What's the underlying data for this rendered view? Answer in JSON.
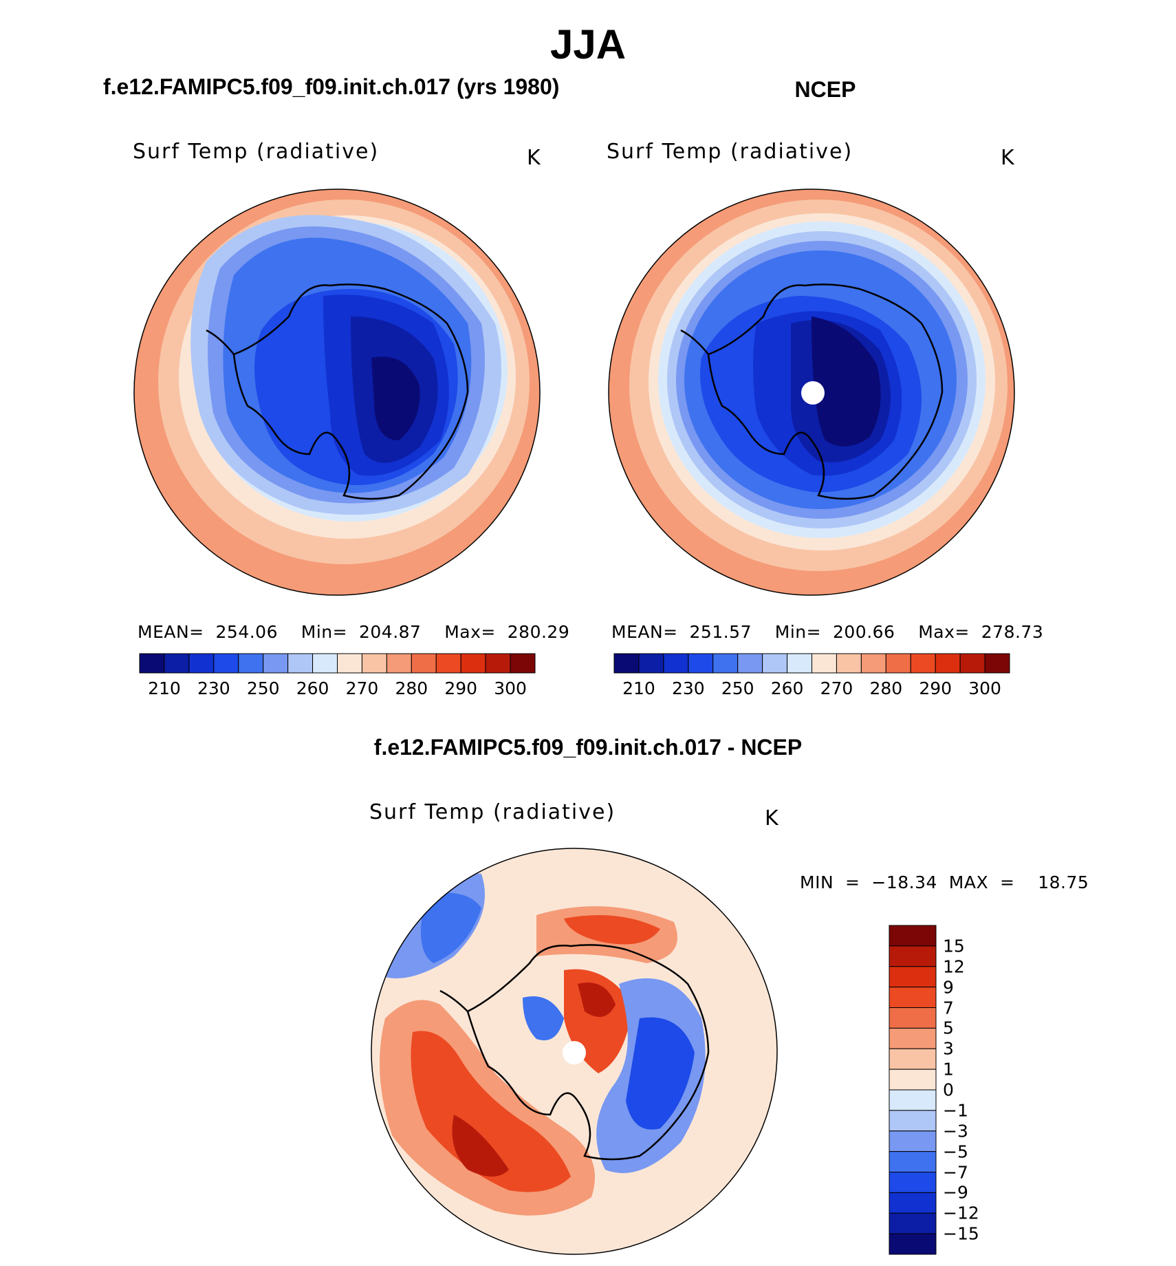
{
  "figure": {
    "title": "JJA",
    "panel1_title": "f.e12.FAMIPC5.f09_f09.init.ch.017 (yrs 1980)",
    "panel2_title": "NCEP",
    "panel3_title": "f.e12.FAMIPC5.f09_f09.init.ch.017 - NCEP"
  },
  "panels": [
    {
      "variable": "Surf Temp (radiative)",
      "units": "K",
      "stats": "MEAN=  254.06    Min=  204.87    Max=  280.29"
    },
    {
      "variable": "Surf Temp (radiative)",
      "units": "K",
      "stats": "MEAN=  251.57    Min=  200.66    Max=  278.73"
    },
    {
      "variable": "Surf Temp (radiative)",
      "units": "K",
      "stats": "MIN  =  −18.34  MAX  =    18.75"
    }
  ],
  "chart_data": [
    {
      "type": "heatmap",
      "projection": "south polar stereographic",
      "title": "f.e12.FAMIPC5.f09_f09.init.ch.017 (yrs 1980)",
      "variable": "Surf Temp (radiative)",
      "units": "K",
      "mean": 254.06,
      "min": 204.87,
      "max": 280.29,
      "colorbar_labels": [
        "210",
        "230",
        "250",
        "260",
        "270",
        "280",
        "290",
        "300"
      ],
      "colorbar_colors": [
        "#0a0a74",
        "#0c1ea6",
        "#1131d0",
        "#1d4ae8",
        "#3e72ef",
        "#7898f1",
        "#afc7f7",
        "#d8e9fb",
        "#fbe6d6",
        "#f9c4a6",
        "#f59b77",
        "#f06e47",
        "#ec4a23",
        "#dc2f0f",
        "#b81a0a",
        "#7c0606"
      ]
    },
    {
      "type": "heatmap",
      "projection": "south polar stereographic",
      "title": "NCEP",
      "variable": "Surf Temp (radiative)",
      "units": "K",
      "mean": 251.57,
      "min": 200.66,
      "max": 278.73,
      "colorbar_labels": [
        "210",
        "230",
        "250",
        "260",
        "270",
        "280",
        "290",
        "300"
      ],
      "colorbar_colors": [
        "#0a0a74",
        "#0c1ea6",
        "#1131d0",
        "#1d4ae8",
        "#3e72ef",
        "#7898f1",
        "#afc7f7",
        "#d8e9fb",
        "#fbe6d6",
        "#f9c4a6",
        "#f59b77",
        "#f06e47",
        "#ec4a23",
        "#dc2f0f",
        "#b81a0a",
        "#7c0606"
      ]
    },
    {
      "type": "heatmap",
      "projection": "south polar stereographic",
      "title": "f.e12.FAMIPC5.f09_f09.init.ch.017 - NCEP",
      "variable": "Surf Temp (radiative)",
      "units": "K",
      "min": -18.34,
      "max": 18.75,
      "colorbar_labels": [
        "15",
        "12",
        "9",
        "7",
        "5",
        "3",
        "1",
        "0",
        "−1",
        "−3",
        "−5",
        "−7",
        "−9",
        "−12",
        "−15"
      ],
      "colorbar_colors": [
        "#7c0606",
        "#b81a0a",
        "#dc2f0f",
        "#ec4a23",
        "#f06e47",
        "#f59b77",
        "#f9c4a6",
        "#fbe6d6",
        "#d8e9fb",
        "#afc7f7",
        "#7898f1",
        "#3e72ef",
        "#1d4ae8",
        "#1131d0",
        "#0c1ea6",
        "#0a0a74"
      ]
    }
  ]
}
